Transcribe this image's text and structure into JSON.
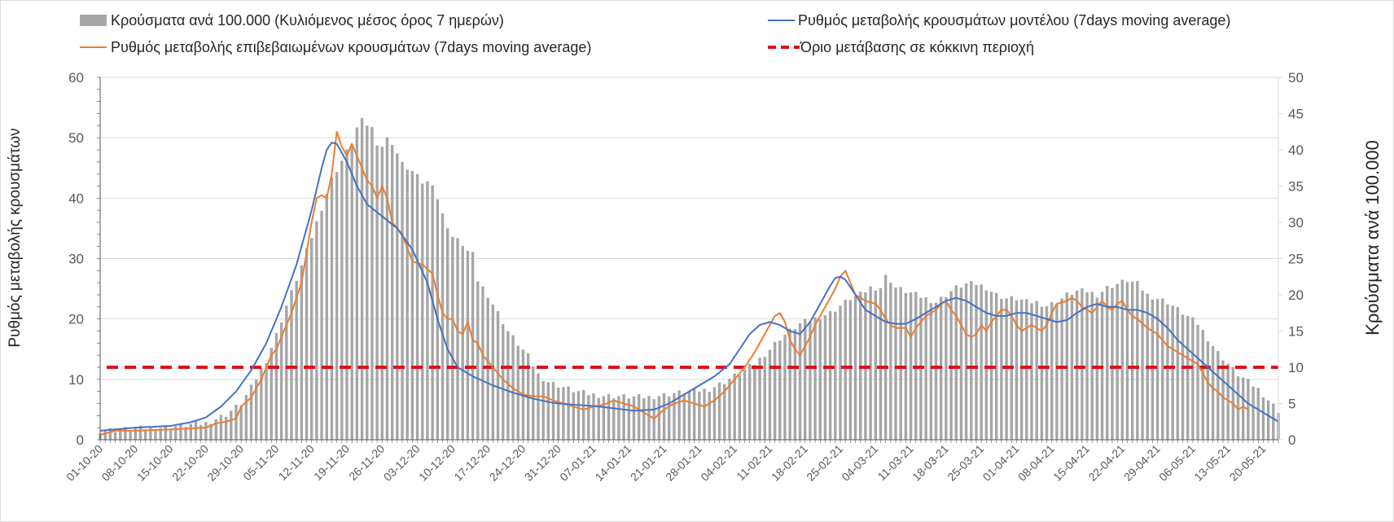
{
  "colors": {
    "bars": "#a6a6a6",
    "model_line": "#4472c4",
    "confirmed_line": "#ed7d31",
    "threshold": "#d9131b",
    "grid": "#d9d9d9",
    "axis": "#595959"
  },
  "chart_data": {
    "type": "bar+line",
    "title": "",
    "legend": {
      "placement": "top",
      "entries": [
        "Κρούσματα ανά 100.000 (Κυλιόμενος μέσος όρος 7 ημερών)",
        "Ρυθμός μεταβολής κρουσμάτων μοντέλου (7days moving average)",
        "Ρυθμός μεταβολής επιβεβαιωμένων κρουσμάτων (7days moving average)",
        "Όριο μετάβασης σε κόκκινη περιοχή"
      ]
    },
    "ylabel_left": "Ρυθμός μεταβολής κρουσμάτων",
    "ylabel_right": "Κρούσματα ανά 100.000",
    "ylim_left": [
      0,
      60
    ],
    "ylim_right": [
      0,
      50
    ],
    "yticks_left": [
      "0",
      "10",
      "20",
      "30",
      "40",
      "50",
      "60"
    ],
    "yticks_right": [
      "0",
      "5",
      "10",
      "15",
      "20",
      "25",
      "30",
      "35",
      "40",
      "45",
      "50"
    ],
    "grid": true,
    "n_days": 235,
    "x_ticks": [
      "01-10-20",
      "08-10-20",
      "15-10-20",
      "22-10-20",
      "29-10-20",
      "05-11-20",
      "12-11-20",
      "19-11-20",
      "26-11-20",
      "03-12-20",
      "10-12-20",
      "17-12-20",
      "24-12-20",
      "31-12-20",
      "07-01-21",
      "14-01-21",
      "21-01-21",
      "28-01-21",
      "04-02-21",
      "11-02-21",
      "18-02-21",
      "25-02-21",
      "04-03-21",
      "11-03-21",
      "18-03-21",
      "25-03-21",
      "01-04-21",
      "08-04-21",
      "15-04-21",
      "22-04-21",
      "29-04-21",
      "06-05-21",
      "13-05-21",
      "20-05-21"
    ],
    "bars_keyframes": [
      [
        0,
        1.3
      ],
      [
        7,
        1.5
      ],
      [
        14,
        1.8
      ],
      [
        21,
        2.3
      ],
      [
        25,
        3.5
      ],
      [
        28,
        5.0
      ],
      [
        30,
        7.2
      ],
      [
        33,
        11.0
      ],
      [
        35,
        14.5
      ],
      [
        37,
        18.5
      ],
      [
        40,
        24.0
      ],
      [
        43,
        30.0
      ],
      [
        46,
        36.0
      ],
      [
        48,
        38.5
      ],
      [
        50,
        41.0
      ],
      [
        51,
        43.0
      ],
      [
        52,
        44.0
      ],
      [
        53,
        43.5
      ],
      [
        54,
        43.0
      ],
      [
        55,
        41.0
      ],
      [
        56,
        40.5
      ],
      [
        57,
        41.5
      ],
      [
        58,
        41.0
      ],
      [
        60,
        38.0
      ],
      [
        62,
        37.0
      ],
      [
        64,
        35.5
      ],
      [
        66,
        35.5
      ],
      [
        68,
        31.0
      ],
      [
        70,
        28.0
      ],
      [
        72,
        27.0
      ],
      [
        73,
        26.0
      ],
      [
        74,
        25.5
      ],
      [
        75,
        22.0
      ],
      [
        77,
        20.0
      ],
      [
        79,
        17.5
      ],
      [
        81,
        15.0
      ],
      [
        83,
        13.2
      ],
      [
        85,
        11.5
      ],
      [
        87,
        9.0
      ],
      [
        89,
        8.0
      ],
      [
        91,
        7.5
      ],
      [
        94,
        6.8
      ],
      [
        97,
        6.3
      ],
      [
        100,
        6.1
      ],
      [
        103,
        6.0
      ],
      [
        106,
        5.9
      ],
      [
        109,
        5.9
      ],
      [
        112,
        6.2
      ],
      [
        115,
        6.5
      ],
      [
        118,
        6.7
      ],
      [
        121,
        7.0
      ],
      [
        124,
        8.0
      ],
      [
        127,
        9.2
      ],
      [
        130,
        10.5
      ],
      [
        133,
        12.5
      ],
      [
        135,
        14.0
      ],
      [
        137,
        15.0
      ],
      [
        139,
        16.0
      ],
      [
        141,
        16.5
      ],
      [
        143,
        17.0
      ],
      [
        145,
        17.5
      ],
      [
        147,
        18.5
      ],
      [
        149,
        19.5
      ],
      [
        151,
        20.0
      ],
      [
        153,
        21.0
      ],
      [
        155,
        21.0
      ],
      [
        156,
        22.5
      ],
      [
        157,
        22.0
      ],
      [
        158,
        21.0
      ],
      [
        160,
        20.5
      ],
      [
        162,
        20.0
      ],
      [
        164,
        19.5
      ],
      [
        166,
        19.0
      ],
      [
        168,
        20.0
      ],
      [
        170,
        21.0
      ],
      [
        172,
        21.5
      ],
      [
        174,
        21.5
      ],
      [
        176,
        21.0
      ],
      [
        178,
        20.0
      ],
      [
        180,
        19.5
      ],
      [
        182,
        19.5
      ],
      [
        184,
        19.0
      ],
      [
        186,
        19.0
      ],
      [
        188,
        18.5
      ],
      [
        190,
        19.0
      ],
      [
        192,
        20.0
      ],
      [
        194,
        20.5
      ],
      [
        196,
        20.5
      ],
      [
        198,
        20.0
      ],
      [
        200,
        21.0
      ],
      [
        202,
        21.5
      ],
      [
        204,
        22.0
      ],
      [
        206,
        21.5
      ],
      [
        208,
        20.0
      ],
      [
        210,
        19.5
      ],
      [
        212,
        19.0
      ],
      [
        214,
        18.0
      ],
      [
        216,
        17.0
      ],
      [
        218,
        16.0
      ],
      [
        220,
        14.0
      ],
      [
        222,
        12.0
      ],
      [
        224,
        10.5
      ],
      [
        226,
        9.0
      ],
      [
        228,
        8.0
      ],
      [
        230,
        7.0
      ],
      [
        232,
        5.5
      ],
      [
        234,
        4.0
      ]
    ],
    "model_line_keyframes": [
      [
        0,
        1.5
      ],
      [
        7,
        2.0
      ],
      [
        14,
        2.3
      ],
      [
        18,
        2.9
      ],
      [
        21,
        3.7
      ],
      [
        24,
        5.5
      ],
      [
        27,
        8.0
      ],
      [
        30,
        11.5
      ],
      [
        33,
        16.0
      ],
      [
        36,
        22.0
      ],
      [
        39,
        29.0
      ],
      [
        42,
        38.0
      ],
      [
        44,
        45.0
      ],
      [
        45,
        48.0
      ],
      [
        46,
        49.2
      ],
      [
        47,
        49.0
      ],
      [
        49,
        46.0
      ],
      [
        51,
        42.0
      ],
      [
        53,
        39.0
      ],
      [
        56,
        37.0
      ],
      [
        59,
        35.0
      ],
      [
        62,
        31.5
      ],
      [
        65,
        26.0
      ],
      [
        67,
        20.0
      ],
      [
        69,
        15.0
      ],
      [
        71,
        12.0
      ],
      [
        74,
        10.5
      ],
      [
        78,
        9.0
      ],
      [
        82,
        7.8
      ],
      [
        86,
        6.8
      ],
      [
        90,
        6.1
      ],
      [
        94,
        5.8
      ],
      [
        98,
        5.6
      ],
      [
        102,
        5.2
      ],
      [
        106,
        4.8
      ],
      [
        110,
        5.0
      ],
      [
        113,
        6.0
      ],
      [
        116,
        7.5
      ],
      [
        119,
        9.0
      ],
      [
        122,
        10.5
      ],
      [
        125,
        12.5
      ],
      [
        127,
        15.0
      ],
      [
        129,
        17.5
      ],
      [
        131,
        19.0
      ],
      [
        133,
        19.5
      ],
      [
        135,
        19.0
      ],
      [
        137,
        18.0
      ],
      [
        139,
        17.5
      ],
      [
        141,
        19.5
      ],
      [
        143,
        22.5
      ],
      [
        145,
        25.5
      ],
      [
        146,
        26.8
      ],
      [
        147,
        27.0
      ],
      [
        148,
        26.5
      ],
      [
        150,
        24.0
      ],
      [
        152,
        21.5
      ],
      [
        154,
        20.5
      ],
      [
        156,
        19.5
      ],
      [
        158,
        19.2
      ],
      [
        160,
        19.2
      ],
      [
        162,
        20.0
      ],
      [
        164,
        21.0
      ],
      [
        166,
        22.0
      ],
      [
        168,
        23.0
      ],
      [
        170,
        23.5
      ],
      [
        172,
        23.0
      ],
      [
        174,
        22.0
      ],
      [
        176,
        21.0
      ],
      [
        178,
        20.5
      ],
      [
        180,
        20.5
      ],
      [
        182,
        21.0
      ],
      [
        184,
        21.0
      ],
      [
        186,
        20.5
      ],
      [
        188,
        20.0
      ],
      [
        190,
        19.5
      ],
      [
        192,
        19.8
      ],
      [
        194,
        21.0
      ],
      [
        196,
        22.0
      ],
      [
        198,
        22.5
      ],
      [
        200,
        22.0
      ],
      [
        202,
        22.0
      ],
      [
        204,
        21.5
      ],
      [
        206,
        21.5
      ],
      [
        208,
        21.0
      ],
      [
        210,
        20.0
      ],
      [
        212,
        18.5
      ],
      [
        214,
        16.5
      ],
      [
        216,
        15.0
      ],
      [
        218,
        13.5
      ],
      [
        220,
        12.0
      ],
      [
        222,
        10.5
      ],
      [
        224,
        9.0
      ],
      [
        226,
        7.5
      ],
      [
        228,
        6.0
      ],
      [
        230,
        5.0
      ],
      [
        232,
        4.0
      ],
      [
        234,
        3.0
      ]
    ],
    "confirmed_line_keyframes": [
      [
        0,
        0.8
      ],
      [
        3,
        1.5
      ],
      [
        7,
        1.5
      ],
      [
        14,
        1.7
      ],
      [
        21,
        2.0
      ],
      [
        23,
        2.7
      ],
      [
        25,
        3.0
      ],
      [
        27,
        3.5
      ],
      [
        28,
        5.5
      ],
      [
        30,
        7.0
      ],
      [
        32,
        10.0
      ],
      [
        34,
        14.0
      ],
      [
        35,
        15.0
      ],
      [
        36,
        17.0
      ],
      [
        38,
        21.0
      ],
      [
        40,
        26.0
      ],
      [
        42,
        36.0
      ],
      [
        43,
        40.0
      ],
      [
        44,
        40.5
      ],
      [
        45,
        40.0
      ],
      [
        46,
        44.0
      ],
      [
        47,
        51.0
      ],
      [
        48,
        48.5
      ],
      [
        49,
        47.0
      ],
      [
        50,
        49.0
      ],
      [
        51,
        47.0
      ],
      [
        52,
        45.0
      ],
      [
        53,
        43.0
      ],
      [
        54,
        42.0
      ],
      [
        55,
        40.0
      ],
      [
        56,
        42.0
      ],
      [
        57,
        40.0
      ],
      [
        58,
        36.0
      ],
      [
        60,
        34.0
      ],
      [
        62,
        29.5
      ],
      [
        64,
        29.0
      ],
      [
        66,
        27.5
      ],
      [
        67,
        24.0
      ],
      [
        68,
        21.0
      ],
      [
        69,
        20.0
      ],
      [
        70,
        20.0
      ],
      [
        71,
        18.0
      ],
      [
        72,
        17.5
      ],
      [
        73,
        19.5
      ],
      [
        74,
        16.5
      ],
      [
        75,
        16.0
      ],
      [
        76,
        14.0
      ],
      [
        78,
        12.0
      ],
      [
        80,
        10.0
      ],
      [
        82,
        8.5
      ],
      [
        84,
        7.5
      ],
      [
        86,
        7.2
      ],
      [
        88,
        7.2
      ],
      [
        90,
        6.5
      ],
      [
        92,
        6.0
      ],
      [
        94,
        5.5
      ],
      [
        96,
        5.0
      ],
      [
        98,
        5.5
      ],
      [
        100,
        5.8
      ],
      [
        102,
        6.5
      ],
      [
        104,
        6.0
      ],
      [
        106,
        5.5
      ],
      [
        108,
        4.5
      ],
      [
        110,
        3.5
      ],
      [
        112,
        5.0
      ],
      [
        114,
        6.0
      ],
      [
        116,
        6.5
      ],
      [
        118,
        6.0
      ],
      [
        120,
        5.5
      ],
      [
        122,
        6.5
      ],
      [
        124,
        8.0
      ],
      [
        126,
        10.0
      ],
      [
        128,
        12.0
      ],
      [
        130,
        14.5
      ],
      [
        132,
        17.5
      ],
      [
        134,
        20.5
      ],
      [
        135,
        21.0
      ],
      [
        136,
        19.5
      ],
      [
        137,
        16.5
      ],
      [
        138,
        15.0
      ],
      [
        139,
        14.0
      ],
      [
        140,
        15.5
      ],
      [
        141,
        17.0
      ],
      [
        142,
        19.0
      ],
      [
        144,
        22.0
      ],
      [
        146,
        25.0
      ],
      [
        147,
        27.0
      ],
      [
        148,
        28.0
      ],
      [
        149,
        26.0
      ],
      [
        150,
        24.0
      ],
      [
        152,
        23.0
      ],
      [
        154,
        22.5
      ],
      [
        155,
        21.5
      ],
      [
        156,
        20.0
      ],
      [
        157,
        19.0
      ],
      [
        158,
        18.5
      ],
      [
        160,
        18.5
      ],
      [
        161,
        17.0
      ],
      [
        162,
        18.5
      ],
      [
        164,
        20.5
      ],
      [
        166,
        21.5
      ],
      [
        167,
        22.5
      ],
      [
        168,
        23.0
      ],
      [
        169,
        21.5
      ],
      [
        170,
        20.5
      ],
      [
        171,
        19.0
      ],
      [
        172,
        17.5
      ],
      [
        173,
        17.0
      ],
      [
        174,
        17.5
      ],
      [
        175,
        19.0
      ],
      [
        176,
        18.0
      ],
      [
        177,
        19.5
      ],
      [
        178,
        20.5
      ],
      [
        179,
        21.5
      ],
      [
        180,
        21.5
      ],
      [
        181,
        20.5
      ],
      [
        182,
        19.0
      ],
      [
        183,
        18.0
      ],
      [
        184,
        18.5
      ],
      [
        185,
        19.0
      ],
      [
        186,
        18.5
      ],
      [
        187,
        18.0
      ],
      [
        188,
        19.0
      ],
      [
        189,
        21.0
      ],
      [
        190,
        22.5
      ],
      [
        192,
        23.0
      ],
      [
        193,
        23.5
      ],
      [
        194,
        23.0
      ],
      [
        195,
        22.0
      ],
      [
        196,
        21.5
      ],
      [
        197,
        21.0
      ],
      [
        198,
        22.0
      ],
      [
        199,
        23.0
      ],
      [
        200,
        22.0
      ],
      [
        201,
        21.5
      ],
      [
        202,
        22.5
      ],
      [
        203,
        23.0
      ],
      [
        204,
        21.5
      ],
      [
        205,
        20.5
      ],
      [
        206,
        20.0
      ],
      [
        208,
        18.5
      ],
      [
        210,
        17.5
      ],
      [
        212,
        15.5
      ],
      [
        214,
        14.5
      ],
      [
        216,
        13.5
      ],
      [
        218,
        12.5
      ],
      [
        219,
        11.0
      ],
      [
        220,
        9.5
      ],
      [
        221,
        8.5
      ],
      [
        222,
        8.0
      ],
      [
        223,
        7.0
      ],
      [
        224,
        6.5
      ],
      [
        225,
        6.0
      ],
      [
        226,
        5.0
      ],
      [
        227,
        5.5
      ],
      [
        228,
        5.0
      ]
    ],
    "threshold_value": 12
  }
}
